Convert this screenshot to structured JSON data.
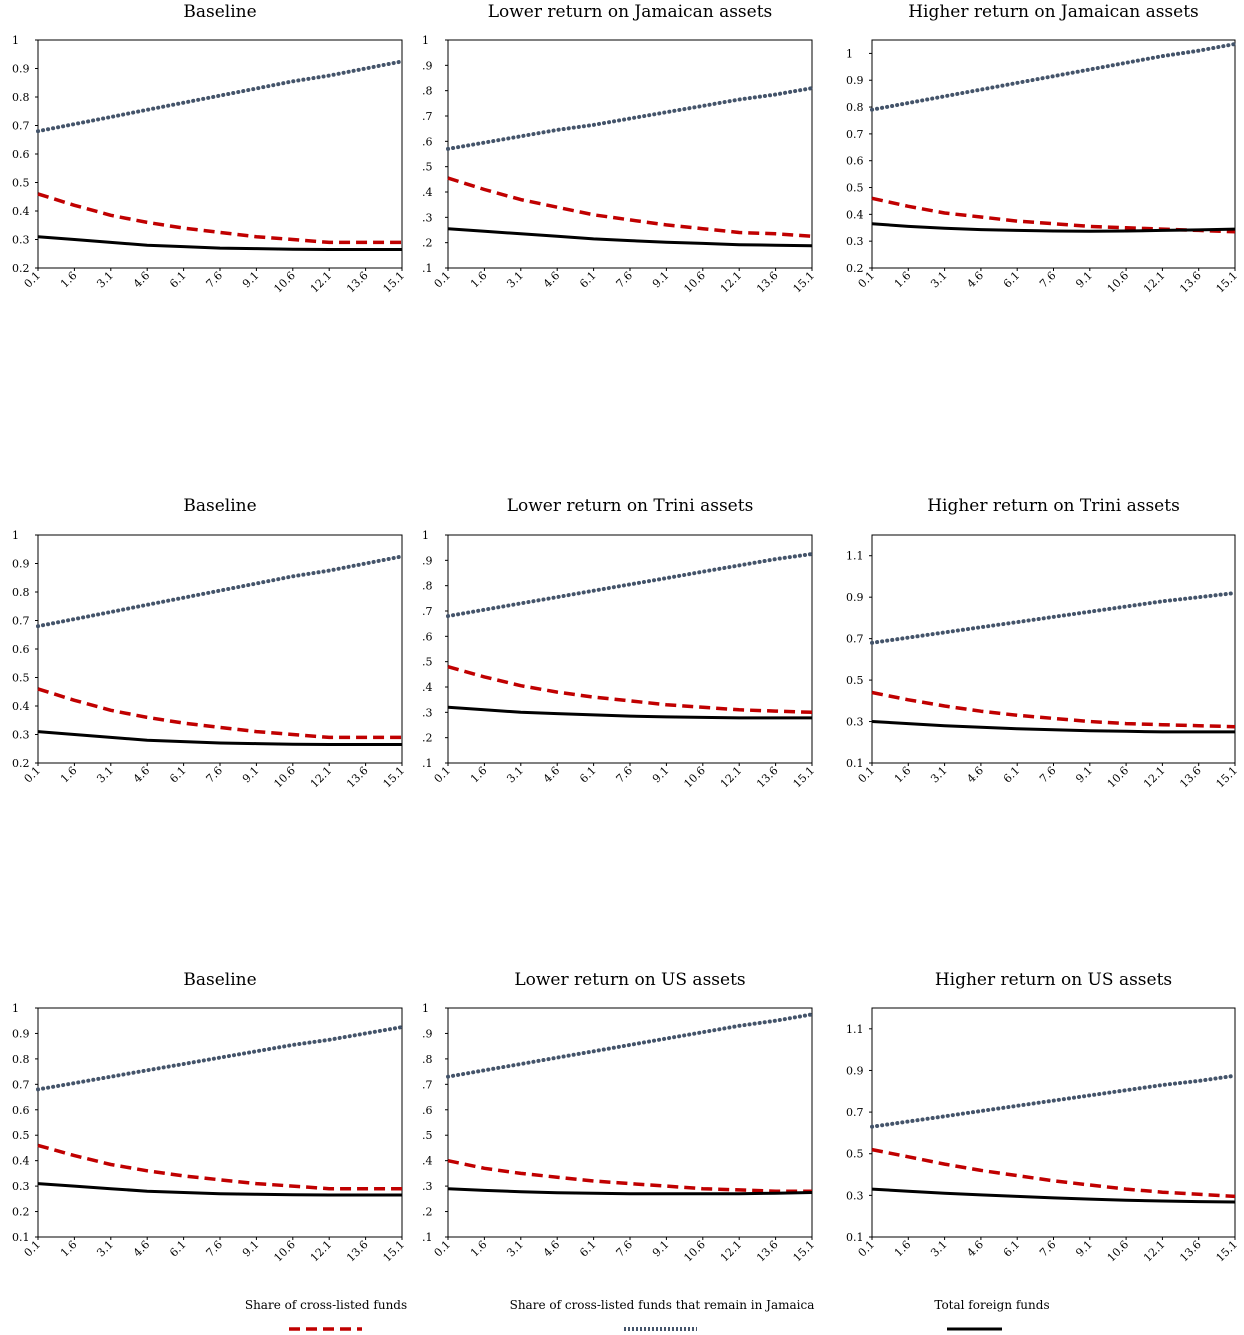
{
  "chart_data": [
    {
      "type": "line",
      "title": "Baseline",
      "x": [
        "0.1",
        "1.6",
        "3.1",
        "4.6",
        "6.1",
        "7.6",
        "9.1",
        "10.6",
        "12.1",
        "13.6",
        "15.1"
      ],
      "y_ticks": [
        "0.2",
        "0.3",
        "0.4",
        "0.5",
        "0.6",
        "0.7",
        "0.8",
        "0.9",
        "1"
      ],
      "ylim": [
        0.2,
        1.0
      ],
      "series": [
        {
          "name": "Share of cross-listed funds",
          "values": [
            0.46,
            0.42,
            0.385,
            0.36,
            0.34,
            0.325,
            0.31,
            0.3,
            0.29,
            0.29,
            0.29
          ]
        },
        {
          "name": "Share of cross-listed funds that remain in Jamaica",
          "values": [
            0.68,
            0.705,
            0.73,
            0.755,
            0.78,
            0.805,
            0.83,
            0.855,
            0.875,
            0.9,
            0.925
          ]
        },
        {
          "name": "Total foreign funds",
          "values": [
            0.31,
            0.3,
            0.29,
            0.28,
            0.275,
            0.27,
            0.268,
            0.266,
            0.265,
            0.265,
            0.265
          ]
        }
      ]
    },
    {
      "type": "line",
      "title": "Lower return on Jamaican assets",
      "x": [
        "0.1",
        "1.6",
        "3.1",
        "4.6",
        "6.1",
        "7.6",
        "9.1",
        "10.6",
        "12.1",
        "13.6",
        "15.1"
      ],
      "y_ticks": [
        ".1",
        ".2",
        ".3",
        ".4",
        ".5",
        ".6",
        ".7",
        ".8",
        ".9",
        "1"
      ],
      "ylim": [
        0.1,
        1.0
      ],
      "series": [
        {
          "name": "Share of cross-listed funds",
          "values": [
            0.455,
            0.41,
            0.37,
            0.34,
            0.31,
            0.29,
            0.27,
            0.255,
            0.24,
            0.235,
            0.225
          ]
        },
        {
          "name": "Share of cross-listed funds that remain in Jamaica",
          "values": [
            0.57,
            0.595,
            0.62,
            0.645,
            0.665,
            0.69,
            0.715,
            0.74,
            0.765,
            0.785,
            0.81
          ]
        },
        {
          "name": "Total foreign funds",
          "values": [
            0.255,
            0.245,
            0.235,
            0.225,
            0.215,
            0.208,
            0.202,
            0.197,
            0.192,
            0.19,
            0.188
          ]
        }
      ]
    },
    {
      "type": "line",
      "title": "Higher return on Jamaican assets",
      "x": [
        "0.1",
        "1.6",
        "3.1",
        "4.6",
        "6.1",
        "7.6",
        "9.1",
        "10.6",
        "12.1",
        "13.6",
        "15.1"
      ],
      "y_ticks": [
        "0.2",
        "0.3",
        "0.4",
        "0.5",
        "0.6",
        "0.7",
        "0.8",
        "0.9",
        "1"
      ],
      "ylim": [
        0.2,
        1.05
      ],
      "series": [
        {
          "name": "Share of cross-listed funds",
          "values": [
            0.46,
            0.43,
            0.405,
            0.39,
            0.375,
            0.365,
            0.355,
            0.35,
            0.345,
            0.34,
            0.335
          ]
        },
        {
          "name": "Share of cross-listed funds that remain in Jamaica",
          "values": [
            0.79,
            0.815,
            0.84,
            0.865,
            0.89,
            0.915,
            0.94,
            0.965,
            0.99,
            1.01,
            1.035
          ]
        },
        {
          "name": "Total foreign funds",
          "values": [
            0.365,
            0.355,
            0.348,
            0.343,
            0.34,
            0.338,
            0.337,
            0.338,
            0.34,
            0.342,
            0.345
          ]
        }
      ]
    },
    {
      "type": "line",
      "title": "Baseline",
      "x": [
        "0.1",
        "1.6",
        "3.1",
        "4.6",
        "6.1",
        "7.6",
        "9.1",
        "10.6",
        "12.1",
        "13.6",
        "15.1"
      ],
      "y_ticks": [
        "0.2",
        "0.3",
        "0.4",
        "0.5",
        "0.6",
        "0.7",
        "0.8",
        "0.9",
        "1"
      ],
      "ylim": [
        0.2,
        1.0
      ],
      "series": [
        {
          "name": "Share of cross-listed funds",
          "values": [
            0.46,
            0.42,
            0.385,
            0.36,
            0.34,
            0.325,
            0.31,
            0.3,
            0.29,
            0.29,
            0.29
          ]
        },
        {
          "name": "Share of cross-listed funds that remain in Jamaica",
          "values": [
            0.68,
            0.705,
            0.73,
            0.755,
            0.78,
            0.805,
            0.83,
            0.855,
            0.875,
            0.9,
            0.925
          ]
        },
        {
          "name": "Total foreign funds",
          "values": [
            0.31,
            0.3,
            0.29,
            0.28,
            0.275,
            0.27,
            0.268,
            0.266,
            0.265,
            0.265,
            0.265
          ]
        }
      ]
    },
    {
      "type": "line",
      "title": "Lower return on Trini assets",
      "x": [
        "0.1",
        "1.6",
        "3.1",
        "4.6",
        "6.1",
        "7.6",
        "9.1",
        "10.6",
        "12.1",
        "13.6",
        "15.1"
      ],
      "y_ticks": [
        ".1",
        ".2",
        ".3",
        ".4",
        ".5",
        ".6",
        ".7",
        ".8",
        ".9",
        "1"
      ],
      "ylim": [
        0.1,
        1.0
      ],
      "series": [
        {
          "name": "Share of cross-listed funds",
          "values": [
            0.48,
            0.44,
            0.405,
            0.38,
            0.36,
            0.345,
            0.33,
            0.32,
            0.31,
            0.305,
            0.3
          ]
        },
        {
          "name": "Share of cross-listed funds that remain in Jamaica",
          "values": [
            0.68,
            0.705,
            0.73,
            0.755,
            0.78,
            0.805,
            0.83,
            0.855,
            0.88,
            0.905,
            0.925
          ]
        },
        {
          "name": "Total foreign funds",
          "values": [
            0.32,
            0.31,
            0.3,
            0.295,
            0.29,
            0.285,
            0.282,
            0.28,
            0.278,
            0.278,
            0.278
          ]
        }
      ]
    },
    {
      "type": "line",
      "title": "Higher return on Trini assets",
      "x": [
        "0.1",
        "1.6",
        "3.1",
        "4.6",
        "6.1",
        "7.6",
        "9.1",
        "10.6",
        "12.1",
        "13.6",
        "15.1"
      ],
      "y_ticks": [
        "0.1",
        "0.3",
        "0.5",
        "0.7",
        "0.9",
        "1.1"
      ],
      "ylim": [
        0.1,
        1.2
      ],
      "series": [
        {
          "name": "Share of cross-listed funds",
          "values": [
            0.44,
            0.405,
            0.375,
            0.35,
            0.33,
            0.315,
            0.3,
            0.29,
            0.285,
            0.28,
            0.275
          ]
        },
        {
          "name": "Share of cross-listed funds that remain in Jamaica",
          "values": [
            0.68,
            0.705,
            0.73,
            0.755,
            0.78,
            0.805,
            0.83,
            0.855,
            0.88,
            0.9,
            0.92
          ]
        },
        {
          "name": "Total foreign funds",
          "values": [
            0.3,
            0.29,
            0.28,
            0.272,
            0.265,
            0.26,
            0.256,
            0.253,
            0.25,
            0.25,
            0.25
          ]
        }
      ]
    },
    {
      "type": "line",
      "title": "Baseline",
      "x": [
        "0.1",
        "1.6",
        "3.1",
        "4.6",
        "6.1",
        "7.6",
        "9.1",
        "10.6",
        "12.1",
        "13.6",
        "15.1"
      ],
      "y_ticks": [
        "0.1",
        "0.2",
        "0.3",
        "0.4",
        "0.5",
        "0.6",
        "0.7",
        "0.8",
        "0.9",
        "1"
      ],
      "ylim": [
        0.1,
        1.0
      ],
      "series": [
        {
          "name": "Share of cross-listed funds",
          "values": [
            0.46,
            0.42,
            0.385,
            0.36,
            0.34,
            0.325,
            0.31,
            0.3,
            0.29,
            0.29,
            0.29
          ]
        },
        {
          "name": "Share of cross-listed funds that remain in Jamaica",
          "values": [
            0.68,
            0.705,
            0.73,
            0.755,
            0.78,
            0.805,
            0.83,
            0.855,
            0.875,
            0.9,
            0.925
          ]
        },
        {
          "name": "Total foreign funds",
          "values": [
            0.31,
            0.3,
            0.29,
            0.28,
            0.275,
            0.27,
            0.268,
            0.266,
            0.265,
            0.265,
            0.265
          ]
        }
      ]
    },
    {
      "type": "line",
      "title": "Lower return on US assets",
      "x": [
        "0.1",
        "1.6",
        "3.1",
        "4.6",
        "6.1",
        "7.6",
        "9.1",
        "10.6",
        "12.1",
        "13.6",
        "15.1"
      ],
      "y_ticks": [
        ".1",
        ".2",
        ".3",
        ".4",
        ".5",
        ".6",
        ".7",
        ".8",
        ".9",
        "1"
      ],
      "ylim": [
        0.1,
        1.0
      ],
      "series": [
        {
          "name": "Share of cross-listed funds",
          "values": [
            0.4,
            0.37,
            0.35,
            0.335,
            0.32,
            0.31,
            0.3,
            0.29,
            0.285,
            0.28,
            0.28
          ]
        },
        {
          "name": "Share of cross-listed funds that remain in Jamaica",
          "values": [
            0.73,
            0.755,
            0.78,
            0.805,
            0.83,
            0.855,
            0.88,
            0.905,
            0.93,
            0.95,
            0.975
          ]
        },
        {
          "name": "Total foreign funds",
          "values": [
            0.29,
            0.283,
            0.278,
            0.274,
            0.272,
            0.27,
            0.27,
            0.27,
            0.27,
            0.272,
            0.275
          ]
        }
      ]
    },
    {
      "type": "line",
      "title": "Higher return on US assets",
      "x": [
        "0.1",
        "1.6",
        "3.1",
        "4.6",
        "6.1",
        "7.6",
        "9.1",
        "10.6",
        "12.1",
        "13.6",
        "15.1"
      ],
      "y_ticks": [
        "0.1",
        "0.3",
        "0.5",
        "0.7",
        "0.9",
        "1.1"
      ],
      "ylim": [
        0.1,
        1.2
      ],
      "series": [
        {
          "name": "Share of cross-listed funds",
          "values": [
            0.52,
            0.485,
            0.45,
            0.42,
            0.395,
            0.37,
            0.35,
            0.33,
            0.315,
            0.305,
            0.295
          ]
        },
        {
          "name": "Share of cross-listed funds that remain in Jamaica",
          "values": [
            0.63,
            0.655,
            0.68,
            0.705,
            0.73,
            0.755,
            0.78,
            0.805,
            0.83,
            0.85,
            0.875
          ]
        },
        {
          "name": "Total foreign funds",
          "values": [
            0.33,
            0.32,
            0.31,
            0.302,
            0.295,
            0.288,
            0.282,
            0.277,
            0.273,
            0.27,
            0.268
          ]
        }
      ]
    }
  ],
  "legend": {
    "items": [
      {
        "label": "Share of cross-listed funds",
        "style": "dashed",
        "color": "#c00000"
      },
      {
        "label": "Share of cross-listed funds that remain in Jamaica",
        "style": "dotted",
        "color": "#44546a"
      },
      {
        "label": "Total foreign funds",
        "style": "solid",
        "color": "#000000"
      }
    ]
  },
  "colors": {
    "red_series": "#c00000",
    "blue_series": "#44546a",
    "black_series": "#000000"
  }
}
